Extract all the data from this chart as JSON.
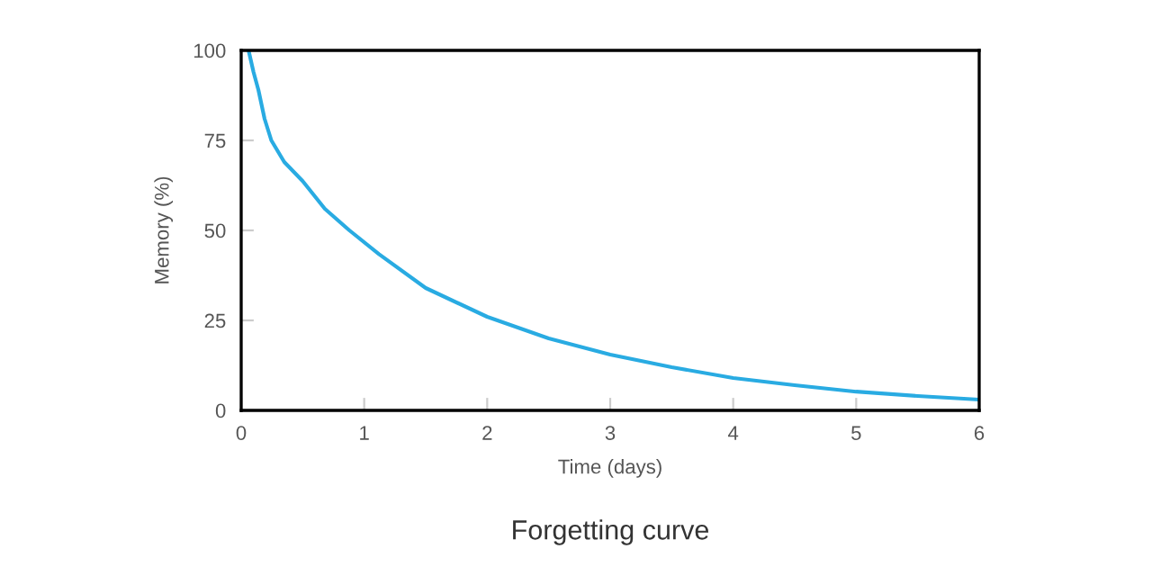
{
  "chart_data": {
    "type": "line",
    "title": "Forgetting curve",
    "xlabel": "Time (days)",
    "ylabel": "Memory (%)",
    "series": [
      {
        "color": "#29abe2",
        "x": [
          0.06,
          0.1,
          0.14,
          0.19,
          0.245,
          0.35,
          0.5,
          0.68,
          0.88,
          1.12,
          1.5,
          2,
          2.5,
          3,
          3.5,
          4,
          4.5,
          5,
          5.5,
          6
        ],
        "values": [
          100,
          94,
          89,
          81,
          75,
          69,
          63.7,
          56,
          50,
          43.4,
          34,
          26,
          20,
          15.5,
          12,
          9,
          7,
          5.2,
          4,
          3
        ]
      }
    ],
    "xlim": [
      0,
      6
    ],
    "ylim": [
      0,
      100
    ],
    "xticks": [
      0,
      1,
      2,
      3,
      4,
      5,
      6
    ],
    "yticks": [
      0,
      25,
      50,
      75,
      100
    ],
    "grid": false,
    "legend": false,
    "marker": "none",
    "line_style": "solid"
  }
}
